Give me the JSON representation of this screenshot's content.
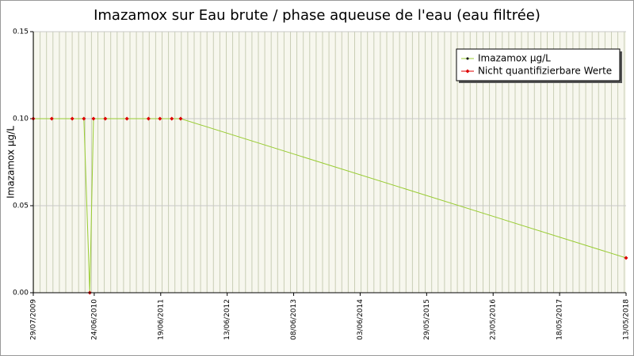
{
  "chart_data": {
    "type": "line",
    "title": "Imazamox sur Eau brute / phase aqueuse de l'eau (eau filtrée)",
    "y_label": "Imazamox µg/L",
    "x": [
      "29/07/2009",
      "06/11/2009",
      "25/02/2010",
      "29/04/2010",
      "31/05/2010",
      "20/06/2010",
      "23/08/2010",
      "18/12/2010",
      "14/04/2011",
      "15/06/2011",
      "18/08/2011",
      "05/10/2011",
      "13/05/2018"
    ],
    "series": [
      {
        "name": "Imazamox µg/L",
        "color": "#99cc33",
        "marker_color": "#000000",
        "values": [
          0.1,
          0.1,
          0.1,
          0.1,
          0.0,
          0.1,
          0.1,
          0.1,
          0.1,
          0.1,
          0.1,
          0.1,
          0.02
        ]
      },
      {
        "name": "Nicht quantifizierbare Werte",
        "color": "#dd0000",
        "values": [
          0.1,
          0.1,
          0.1,
          0.1,
          0.0,
          0.1,
          0.1,
          0.1,
          0.1,
          0.1,
          0.1,
          0.1,
          0.02
        ]
      }
    ],
    "xlim": [
      "29/07/2009",
      "13/05/2018"
    ],
    "xticks": [
      "29/07/2009",
      "24/06/2010",
      "19/06/2011",
      "13/06/2012",
      "08/06/2013",
      "03/06/2014",
      "29/05/2015",
      "23/05/2016",
      "18/05/2017",
      "13/05/2018"
    ],
    "ylim": [
      0,
      0.15
    ],
    "yticks": [
      {
        "value": 0,
        "label": "0.00"
      },
      {
        "value": 0.05,
        "label": "0.05"
      },
      {
        "value": 0.1,
        "label": "0.10"
      },
      {
        "value": 0.15,
        "label": "0.15"
      }
    ],
    "grid": true,
    "legend": "upper right"
  }
}
